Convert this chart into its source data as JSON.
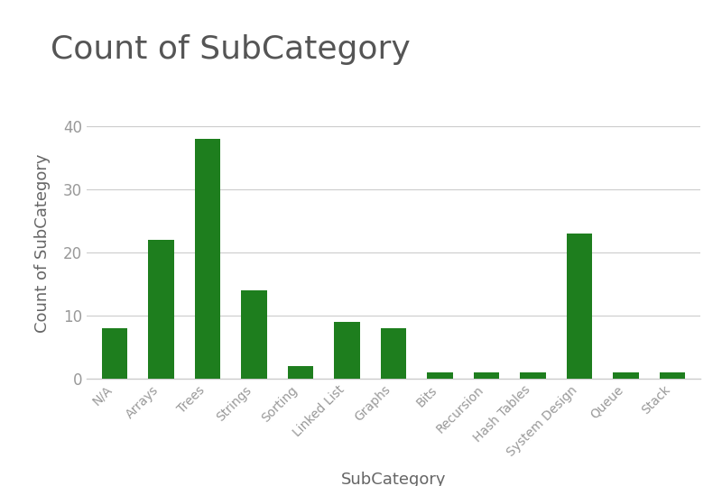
{
  "title": "Count of SubCategory",
  "xlabel": "SubCategory",
  "ylabel": "Count of SubCategory",
  "categories": [
    "N/A",
    "Arrays",
    "Trees",
    "Strings",
    "Sorting",
    "Linked List",
    "Graphs",
    "Bits",
    "Recursion",
    "Hash Tables",
    "System Design",
    "Queue",
    "Stack"
  ],
  "values": [
    8,
    22,
    38,
    14,
    2,
    9,
    8,
    1,
    1,
    1,
    23,
    1,
    1
  ],
  "bar_color": "#1e7e1e",
  "background_color": "#ffffff",
  "ylim": [
    0,
    43
  ],
  "yticks": [
    0,
    10,
    20,
    30,
    40
  ],
  "title_fontsize": 26,
  "axis_label_fontsize": 13,
  "tick_label_fontsize": 10,
  "tick_label_color": "#999999",
  "axis_label_color": "#666666",
  "title_color": "#555555",
  "grid_color": "#cccccc",
  "bar_width": 0.55
}
